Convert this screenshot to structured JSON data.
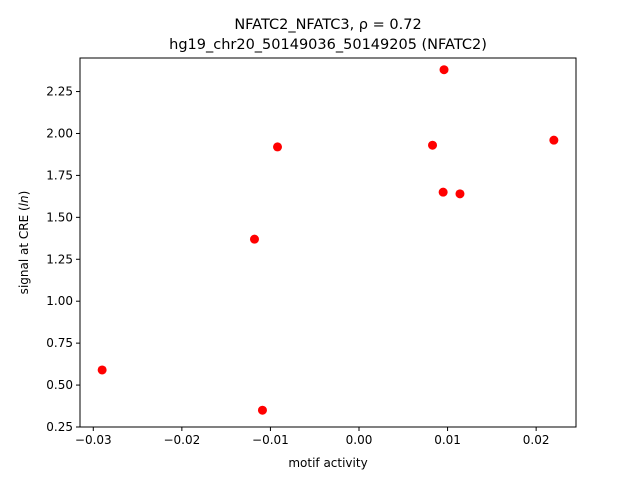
{
  "chart_data": {
    "type": "scatter",
    "title_line1": "NFATC2_NFATC3, ρ = 0.72",
    "title_line2": "hg19_chr20_50149036_50149205 (NFATC2)",
    "xlabel": "motif activity",
    "ylabel": "signal at CRE (ln)",
    "xlim": [
      -0.0315,
      0.0245
    ],
    "ylim": [
      0.25,
      2.45
    ],
    "xticks": [
      {
        "value": -0.03,
        "label": "−0.03"
      },
      {
        "value": -0.02,
        "label": "−0.02"
      },
      {
        "value": -0.01,
        "label": "−0.01"
      },
      {
        "value": 0.0,
        "label": "0.00"
      },
      {
        "value": 0.01,
        "label": "0.01"
      },
      {
        "value": 0.02,
        "label": "0.02"
      }
    ],
    "yticks": [
      {
        "value": 0.25,
        "label": "0.25"
      },
      {
        "value": 0.5,
        "label": "0.50"
      },
      {
        "value": 0.75,
        "label": "0.75"
      },
      {
        "value": 1.0,
        "label": "1.00"
      },
      {
        "value": 1.25,
        "label": "1.25"
      },
      {
        "value": 1.5,
        "label": "1.50"
      },
      {
        "value": 1.75,
        "label": "1.75"
      },
      {
        "value": 2.0,
        "label": "2.00"
      },
      {
        "value": 2.25,
        "label": "2.25"
      }
    ],
    "grid": false,
    "marker_color": "#ff0000",
    "points": [
      {
        "x": -0.029,
        "y": 0.59
      },
      {
        "x": -0.0118,
        "y": 1.37
      },
      {
        "x": -0.0109,
        "y": 0.35
      },
      {
        "x": -0.0092,
        "y": 1.92
      },
      {
        "x": 0.0083,
        "y": 1.93
      },
      {
        "x": 0.0096,
        "y": 2.38
      },
      {
        "x": 0.0095,
        "y": 1.65
      },
      {
        "x": 0.0114,
        "y": 1.64
      },
      {
        "x": 0.022,
        "y": 1.96
      }
    ]
  }
}
